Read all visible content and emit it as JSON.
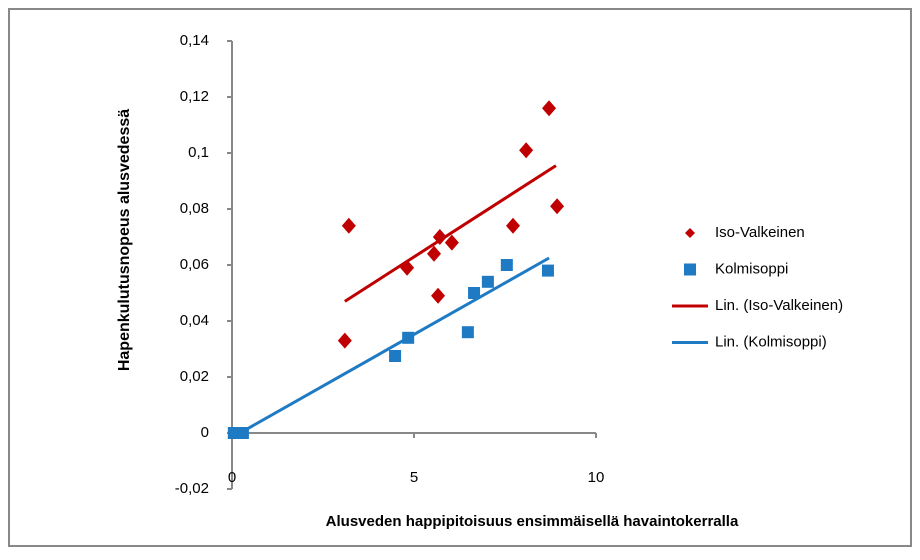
{
  "chart_data": {
    "type": "scatter",
    "x_label": "Alusveden happipitoisuus ensimmäisellä havaintokerralla",
    "y_label": "Hapenkulutusnopeus alusvedessä",
    "xlim": [
      0,
      10
    ],
    "xticks": [
      0,
      5,
      10
    ],
    "ylim": [
      -0.02,
      0.14
    ],
    "yticks": [
      {
        "value": -0.02,
        "label": "-0,02"
      },
      0,
      {
        "value": 0.02,
        "label": "0,02"
      },
      {
        "value": 0.04,
        "label": "0,04"
      },
      {
        "value": 0.06,
        "label": "0,06"
      },
      {
        "value": 0.08,
        "label": "0,08"
      },
      {
        "value": 0.1,
        "label": "0,1"
      },
      {
        "value": 0.12,
        "label": "0,12"
      },
      {
        "value": 0.14,
        "label": "0,14"
      }
    ],
    "legend": "right",
    "series": [
      {
        "name": "Iso-Valkeinen",
        "color": "#c00000",
        "marker": "diamond",
        "x": [
          3.1,
          3.21,
          4.81,
          5.55,
          5.66,
          5.71,
          6.04,
          7.72,
          8.08,
          8.71,
          8.93
        ],
        "values": [
          0.033,
          0.074,
          0.059,
          0.064,
          0.049,
          0.07,
          0.068,
          0.074,
          0.101,
          0.116,
          0.081
        ]
      },
      {
        "name": "Kolmisoppi",
        "color": "#1f7ac4",
        "marker": "square",
        "x": [
          0.05,
          0.16,
          0.3,
          4.48,
          4.84,
          6.48,
          6.65,
          7.03,
          7.55,
          8.68
        ],
        "values": [
          0,
          0,
          0,
          0.0275,
          0.034,
          0.036,
          0.05,
          0.054,
          0.06,
          0.058
        ]
      },
      {
        "name": "Lin. (Iso-Valkeinen)",
        "color": "#c00000",
        "marker": "line",
        "x": [
          3.1,
          8.9
        ],
        "values": [
          0.047,
          0.0955
        ]
      },
      {
        "name": "Lin. (Kolmisoppi)",
        "color": "#1f7ac4",
        "marker": "line",
        "x": [
          0.22,
          8.71
        ],
        "values": [
          0,
          0.0625
        ]
      }
    ]
  }
}
